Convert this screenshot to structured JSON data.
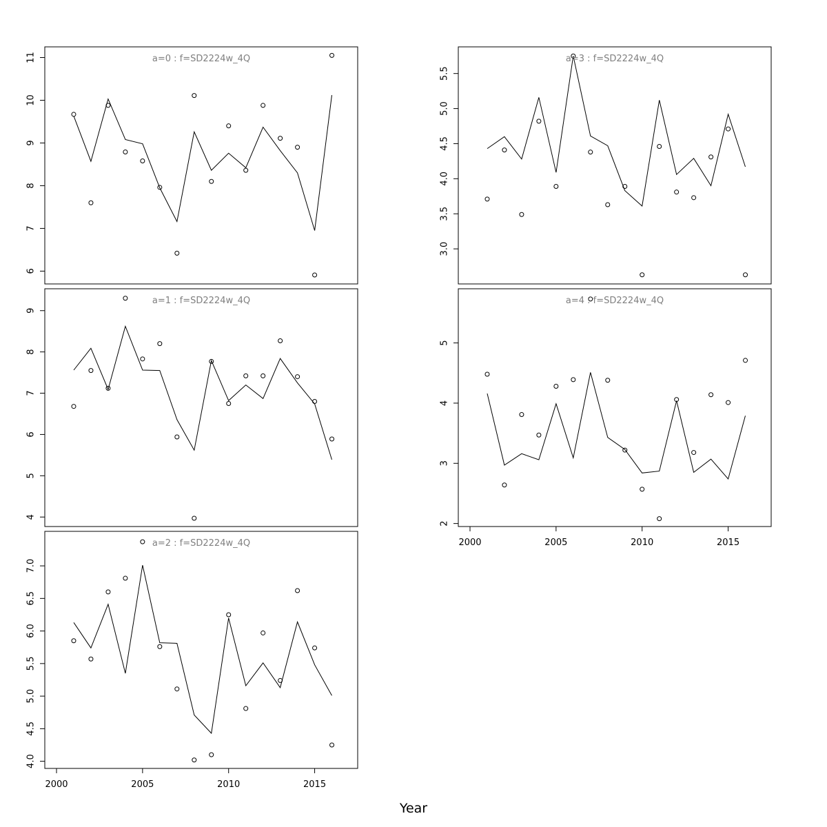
{
  "figure": {
    "xlabel": "Year"
  },
  "chart_data": [
    {
      "type": "line",
      "panel_label": "a=0  :  f=SD2224w_4Q",
      "x": [
        2001,
        2002,
        2003,
        2004,
        2005,
        2006,
        2007,
        2008,
        2009,
        2010,
        2011,
        2012,
        2013,
        2014,
        2015,
        2016
      ],
      "xlim": [
        2000,
        2017.5
      ],
      "xticks": [
        2000,
        2005,
        2010,
        2015
      ],
      "ylim": [
        5.7,
        11.25
      ],
      "yticks": [
        6,
        7,
        8,
        9,
        10,
        11
      ],
      "ytick_labels": [
        "6",
        "7",
        "8",
        "9",
        "10",
        "11"
      ],
      "series": [
        {
          "kind": "line",
          "values": [
            9.63,
            8.57,
            10.03,
            9.08,
            8.98,
            7.95,
            7.16,
            9.26,
            8.36,
            8.76,
            8.42,
            9.37,
            8.82,
            8.3,
            6.95,
            10.12
          ]
        },
        {
          "kind": "points",
          "values": [
            9.67,
            7.6,
            9.88,
            8.79,
            8.58,
            7.96,
            6.42,
            10.11,
            8.1,
            9.4,
            8.36,
            9.88,
            9.11,
            8.9,
            5.91,
            11.05
          ]
        }
      ]
    },
    {
      "type": "line",
      "panel_label": "a=1  :  f=SD2224w_4Q",
      "x": [
        2001,
        2002,
        2003,
        2004,
        2005,
        2006,
        2007,
        2008,
        2009,
        2010,
        2011,
        2012,
        2013,
        2014,
        2015,
        2016
      ],
      "xlim": [
        2000,
        2017.5
      ],
      "xticks": [
        2000,
        2005,
        2010,
        2015
      ],
      "ylim": [
        3.77,
        9.53
      ],
      "yticks": [
        4,
        5,
        6,
        7,
        8,
        9
      ],
      "ytick_labels": [
        "4",
        "5",
        "6",
        "7",
        "8",
        "9"
      ],
      "series": [
        {
          "kind": "line",
          "values": [
            7.56,
            8.09,
            7.09,
            8.62,
            7.56,
            7.55,
            6.36,
            5.62,
            7.79,
            6.82,
            7.2,
            6.87,
            7.84,
            7.25,
            6.74,
            5.39
          ]
        },
        {
          "kind": "points",
          "values": [
            6.68,
            7.55,
            7.12,
            9.3,
            7.83,
            8.2,
            5.94,
            3.97,
            7.77,
            6.75,
            7.42,
            7.42,
            8.27,
            7.4,
            6.8,
            5.89
          ]
        }
      ]
    },
    {
      "type": "line",
      "panel_label": "a=2  :  f=SD2224w_4Q",
      "x": [
        2001,
        2002,
        2003,
        2004,
        2005,
        2006,
        2007,
        2008,
        2009,
        2010,
        2011,
        2012,
        2013,
        2014,
        2015,
        2016
      ],
      "xlim": [
        2000,
        2017.5
      ],
      "xticks": [
        2000,
        2005,
        2010,
        2015
      ],
      "ylim": [
        3.89,
        7.53
      ],
      "yticks": [
        4.0,
        4.5,
        5.0,
        5.5,
        6.0,
        6.5,
        7.0
      ],
      "ytick_labels": [
        "4.0",
        "4.5",
        "5.0",
        "5.5",
        "6.0",
        "6.5",
        "7.0"
      ],
      "series": [
        {
          "kind": "line",
          "values": [
            6.13,
            5.74,
            6.41,
            5.35,
            7.01,
            5.82,
            5.81,
            4.71,
            4.43,
            6.2,
            5.16,
            5.51,
            5.13,
            6.14,
            5.48,
            5.01
          ]
        },
        {
          "kind": "points",
          "values": [
            5.85,
            5.57,
            6.6,
            6.81,
            7.37,
            5.76,
            5.11,
            4.02,
            4.1,
            6.25,
            4.81,
            5.97,
            5.24,
            6.62,
            5.74,
            4.25
          ]
        }
      ]
    },
    {
      "type": "line",
      "panel_label": "a=3  :  f=SD2224w_4Q",
      "x": [
        2001,
        2002,
        2003,
        2004,
        2005,
        2006,
        2007,
        2008,
        2009,
        2010,
        2011,
        2012,
        2013,
        2014,
        2015,
        2016
      ],
      "xlim": [
        2000,
        2017.5
      ],
      "xticks": [
        2000,
        2005,
        2010,
        2015
      ],
      "ylim": [
        2.5,
        5.88
      ],
      "yticks": [
        3.0,
        3.5,
        4.0,
        4.5,
        5.0,
        5.5
      ],
      "ytick_labels": [
        "3.0",
        "3.5",
        "4.0",
        "4.5",
        "5.0",
        "5.5"
      ],
      "series": [
        {
          "kind": "line",
          "values": [
            4.43,
            4.6,
            4.28,
            5.16,
            4.09,
            5.75,
            4.61,
            4.47,
            3.83,
            3.61,
            5.12,
            4.06,
            4.29,
            3.9,
            4.92,
            4.17
          ]
        },
        {
          "kind": "points",
          "values": [
            3.71,
            4.41,
            3.49,
            4.82,
            3.89,
            5.75,
            4.38,
            3.63,
            3.89,
            2.63,
            4.46,
            3.81,
            3.73,
            4.31,
            4.71,
            2.63
          ]
        }
      ]
    },
    {
      "type": "line",
      "panel_label": "a=4  :  f=SD2224w_4Q",
      "x": [
        2001,
        2002,
        2003,
        2004,
        2005,
        2006,
        2007,
        2008,
        2009,
        2010,
        2011,
        2012,
        2013,
        2014,
        2015,
        2016
      ],
      "xlim": [
        2000,
        2017.5
      ],
      "xticks": [
        2000,
        2005,
        2010,
        2015
      ],
      "ylim": [
        1.95,
        5.9
      ],
      "yticks": [
        2,
        3,
        4,
        5
      ],
      "ytick_labels": [
        "2",
        "3",
        "4",
        "5"
      ],
      "series": [
        {
          "kind": "line",
          "values": [
            4.16,
            2.97,
            3.16,
            3.06,
            3.99,
            3.09,
            4.51,
            3.43,
            3.23,
            2.84,
            2.87,
            4.04,
            2.85,
            3.07,
            2.74,
            3.79
          ]
        },
        {
          "kind": "points",
          "values": [
            4.48,
            2.64,
            3.81,
            3.47,
            4.28,
            4.39,
            5.73,
            4.38,
            3.22,
            2.57,
            2.08,
            4.06,
            3.18,
            4.14,
            4.01,
            4.71
          ]
        }
      ]
    }
  ]
}
